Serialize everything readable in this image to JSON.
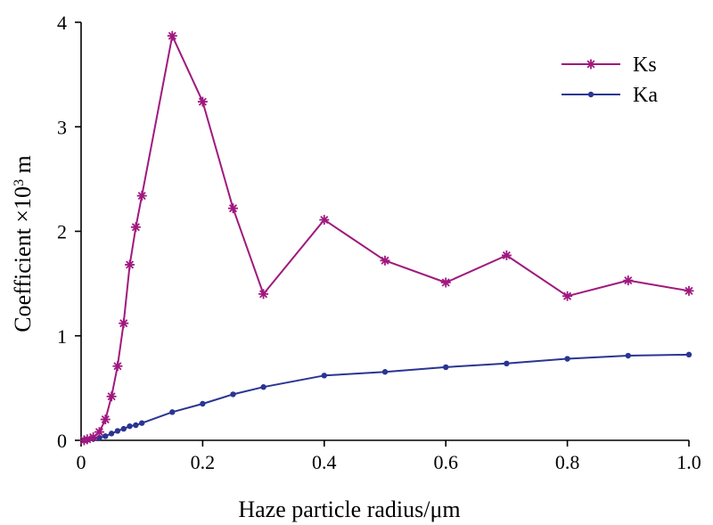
{
  "chart_data": {
    "type": "line",
    "title": "",
    "xlabel": "Haze particle radius/μm",
    "ylabel_main": "Coefficient ×10",
    "ylabel_sup": "3",
    "ylabel_unit": " m",
    "xlim": [
      0,
      1.0
    ],
    "ylim": [
      0,
      4
    ],
    "xticks": [
      0,
      0.2,
      0.4,
      0.6,
      0.8,
      1.0
    ],
    "xtick_labels": [
      "0",
      "0.2",
      "0.4",
      "0.6",
      "0.8",
      "1.0"
    ],
    "yticks": [
      0,
      1,
      2,
      3,
      4
    ],
    "ytick_labels": [
      "0",
      "1",
      "2",
      "3",
      "4"
    ],
    "grid": false,
    "legend_position": "top-right",
    "series": [
      {
        "name": "Ks",
        "color": "#a0187e",
        "marker": "asterisk",
        "x": [
          0.005,
          0.01,
          0.02,
          0.03,
          0.04,
          0.05,
          0.06,
          0.07,
          0.08,
          0.09,
          0.1,
          0.15,
          0.2,
          0.25,
          0.3,
          0.4,
          0.5,
          0.6,
          0.7,
          0.8,
          0.9,
          1.0
        ],
        "y": [
          0.0,
          0.01,
          0.03,
          0.08,
          0.2,
          0.42,
          0.71,
          1.12,
          1.68,
          2.04,
          2.34,
          3.87,
          3.24,
          2.22,
          1.4,
          2.11,
          1.72,
          1.51,
          1.77,
          1.38,
          1.53,
          1.43
        ]
      },
      {
        "name": "Ka",
        "color": "#2a3592",
        "marker": "dot",
        "x": [
          0.005,
          0.01,
          0.02,
          0.03,
          0.04,
          0.05,
          0.06,
          0.07,
          0.08,
          0.09,
          0.1,
          0.15,
          0.2,
          0.25,
          0.3,
          0.4,
          0.5,
          0.6,
          0.7,
          0.8,
          0.9,
          1.0
        ],
        "y": [
          0.0,
          0.005,
          0.015,
          0.025,
          0.04,
          0.065,
          0.09,
          0.11,
          0.135,
          0.145,
          0.165,
          0.27,
          0.35,
          0.44,
          0.51,
          0.62,
          0.655,
          0.7,
          0.735,
          0.78,
          0.81,
          0.82
        ]
      }
    ]
  }
}
